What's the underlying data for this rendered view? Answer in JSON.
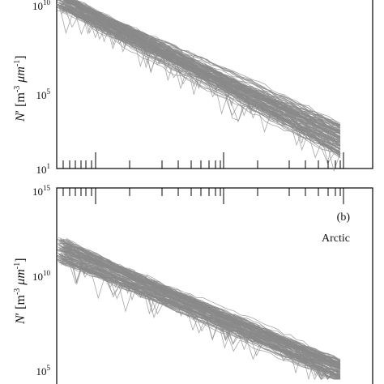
{
  "figure": {
    "panels": [
      "top",
      "bottom"
    ]
  },
  "chart_data": [
    {
      "type": "line",
      "panel_id": "",
      "title": "",
      "ylabel_parts": [
        "N",
        "′",
        " [m",
        "-3",
        " μm",
        "-1",
        "]"
      ],
      "xlabel": "",
      "y_scale": "log",
      "ylim": [
        1,
        10000000000
      ],
      "xlim": [
        1,
        12
      ],
      "y_tick_labels": [
        {
          "base": "10",
          "exp": "10",
          "value": 10000000000
        },
        {
          "base": "10",
          "exp": "5",
          "value": 100000
        },
        {
          "base": "10",
          "exp": "1",
          "value": 1
        }
      ],
      "series_color": "#8a8a8a",
      "series_summary": {
        "count": 120,
        "start_log10_range": [
          9.5,
          10.4
        ],
        "end_log10_range": [
          1.6,
          3.4
        ],
        "end_x": 11
      },
      "series": [
        {
          "x": [
            1,
            2,
            3,
            4,
            5,
            6,
            7,
            8,
            9,
            10,
            11
          ],
          "log10_y": [
            10.1,
            9.3,
            8.5,
            7.6,
            6.8,
            6.0,
            5.2,
            4.4,
            3.6,
            3.0,
            2.5
          ]
        },
        {
          "x": [
            1,
            2,
            3,
            4,
            5,
            6,
            7,
            8,
            9,
            10,
            11
          ],
          "log10_y": [
            9.8,
            9.0,
            8.1,
            7.3,
            6.5,
            5.7,
            4.9,
            4.1,
            3.4,
            2.7,
            2.1
          ]
        }
      ]
    },
    {
      "type": "line",
      "panel_id": "(b)",
      "title": "Arctic",
      "ylabel_parts": [
        "N",
        "′",
        " [m",
        "-3",
        " μm",
        "-1",
        "]"
      ],
      "xlabel": "",
      "y_scale": "log",
      "ylim": [
        100000,
        1000000000000000
      ],
      "xlim": [
        1,
        12
      ],
      "y_tick_labels": [
        {
          "base": "10",
          "exp": "15",
          "value": 1000000000000000
        },
        {
          "base": "10",
          "exp": "10",
          "value": 10000000000
        },
        {
          "base": "10",
          "exp": "5",
          "value": 100000
        }
      ],
      "series_color": "#8a8a8a",
      "series_summary": {
        "count": 120,
        "start_log10_range": [
          11.0,
          12.4
        ],
        "end_log10_range": [
          4.3,
          5.6
        ],
        "end_x": 11
      },
      "series": [
        {
          "x": [
            1,
            2,
            3,
            4,
            5,
            6,
            7,
            8,
            9,
            10,
            11
          ],
          "log10_y": [
            11.8,
            11.0,
            10.3,
            9.6,
            8.9,
            8.2,
            7.5,
            6.8,
            6.1,
            5.5,
            4.9
          ]
        },
        {
          "x": [
            1,
            2,
            3,
            4,
            5,
            6,
            7,
            8,
            9,
            10,
            11
          ],
          "log10_y": [
            11.2,
            10.6,
            9.9,
            9.2,
            8.5,
            7.8,
            7.1,
            6.4,
            5.8,
            5.2,
            4.6
          ]
        }
      ]
    }
  ]
}
